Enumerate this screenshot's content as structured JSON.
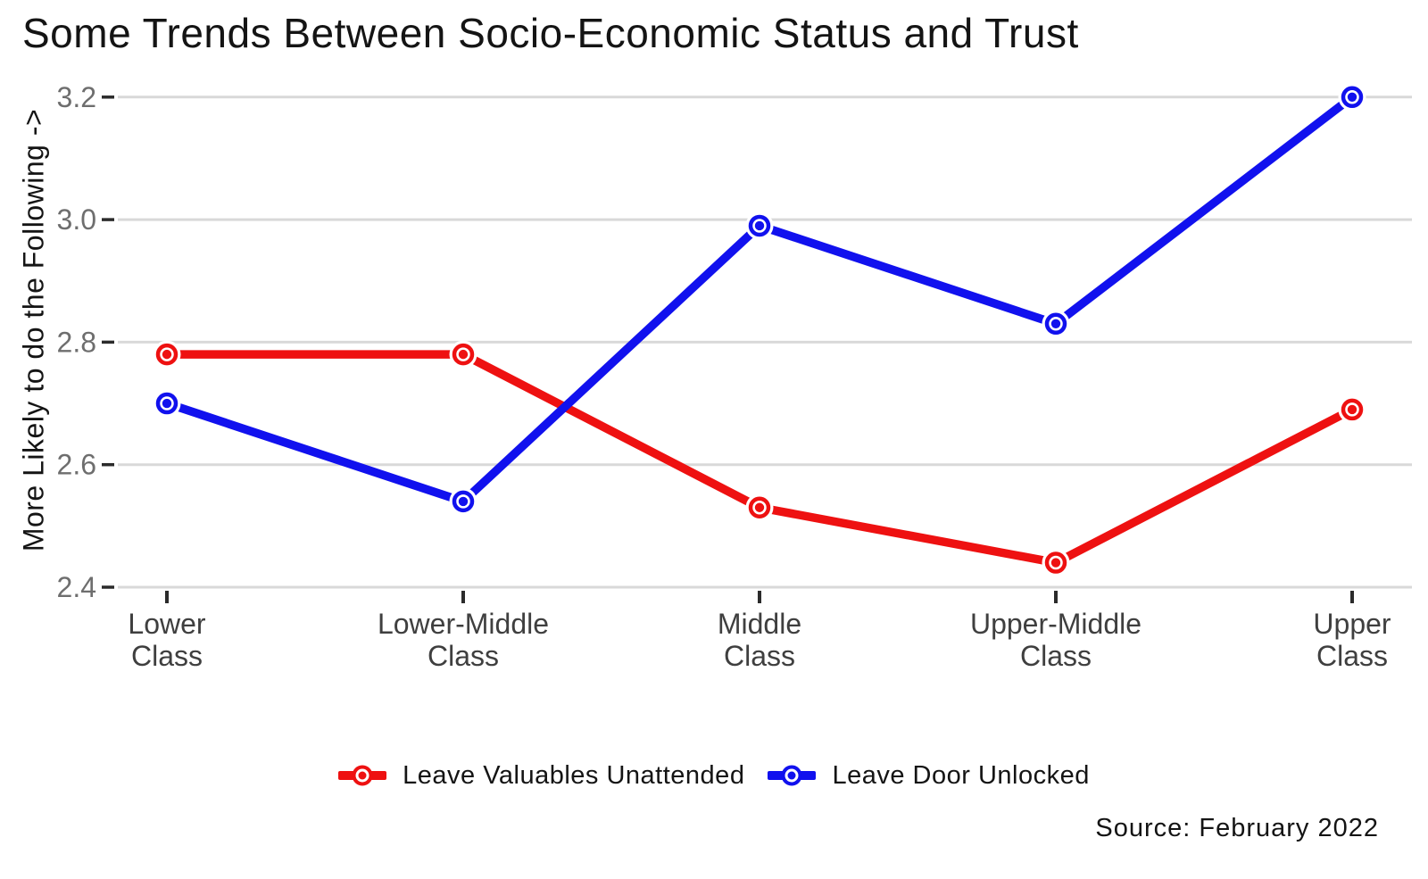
{
  "source_note": "Source: February 2022",
  "colors": {
    "red": "#EE1111",
    "blue": "#1111EE",
    "gridline": "#D9D9D9",
    "tick": "#2B2B2B",
    "y_tick_label": "#6E6E6E",
    "x_tick_label": "#3F3F3F",
    "text": "#141414"
  },
  "chart_data": {
    "type": "line",
    "title": "Some Trends Between Socio-Economic Status and Trust",
    "xlabel": "",
    "ylabel": "More Likely to do the Following ->",
    "categories": [
      "Lower Class",
      "Lower-Middle Class",
      "Middle Class",
      "Upper-Middle Class",
      "Upper Class"
    ],
    "category_label_lines": [
      [
        "Lower",
        "Class"
      ],
      [
        "Lower-Middle",
        "Class"
      ],
      [
        "Middle",
        "Class"
      ],
      [
        "Upper-Middle",
        "Class"
      ],
      [
        "Upper",
        "Class"
      ]
    ],
    "yticks": [
      2.4,
      2.6,
      2.8,
      3.0,
      3.2
    ],
    "ylim": [
      2.4,
      3.2
    ],
    "grid": "horizontal-only",
    "legend_position": "bottom-center",
    "marker_style": "open-circle-with-center-dot",
    "series": [
      {
        "name": "Leave Valuables Unattended",
        "color_key": "red",
        "values": [
          2.78,
          2.78,
          2.53,
          2.44,
          2.69
        ]
      },
      {
        "name": "Leave Door Unlocked",
        "color_key": "blue",
        "values": [
          2.7,
          2.54,
          2.99,
          2.83,
          3.2
        ]
      }
    ]
  }
}
